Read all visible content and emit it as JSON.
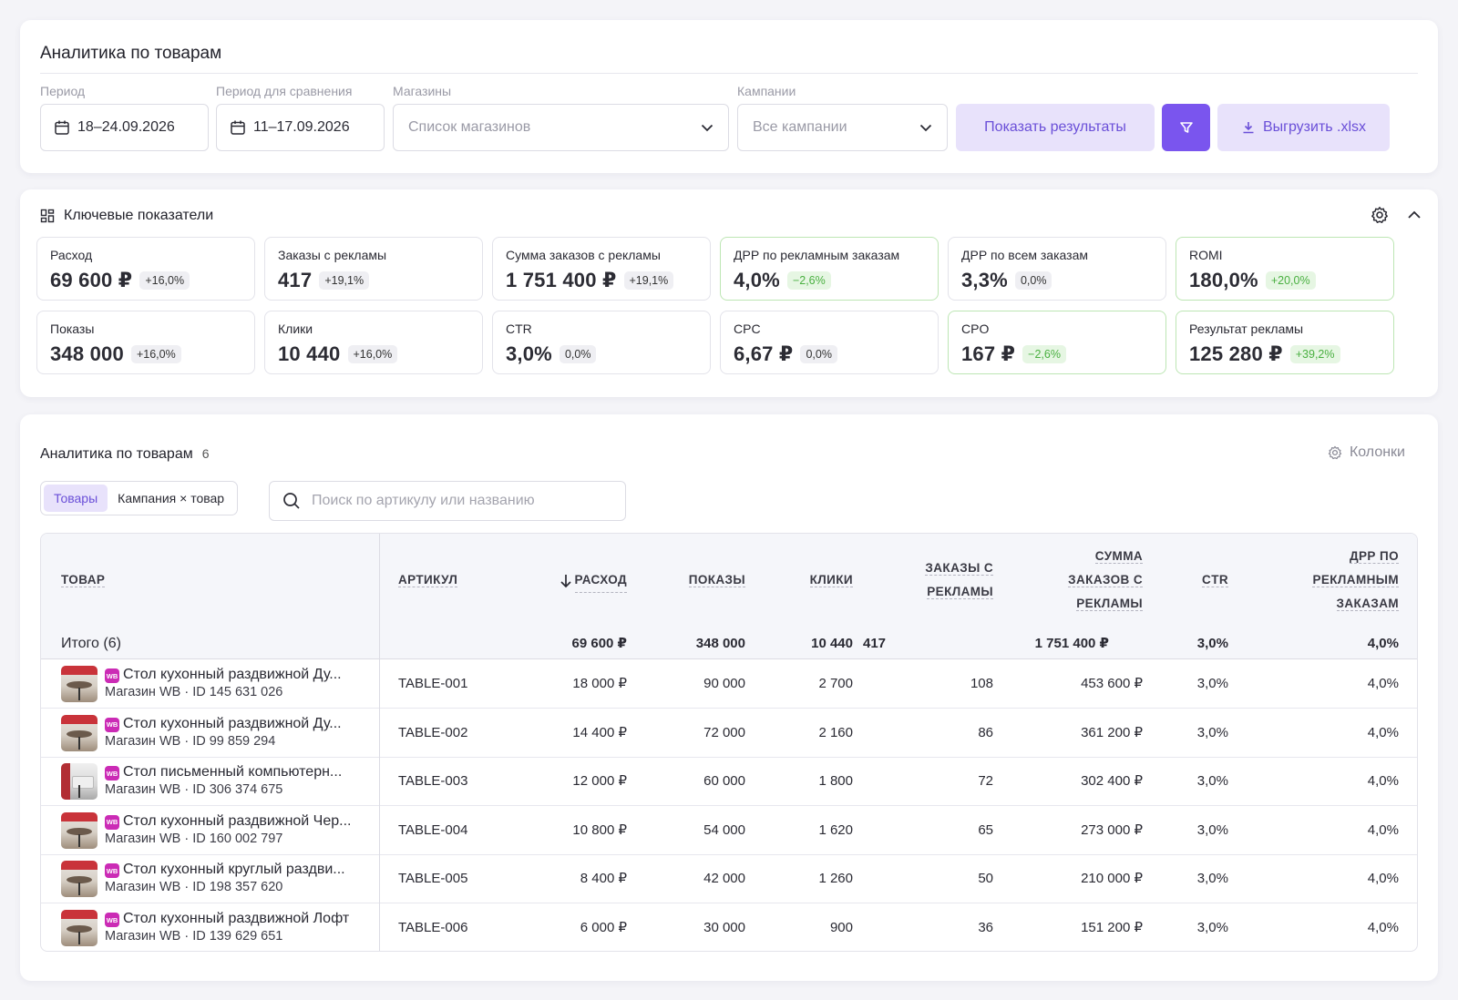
{
  "filters": {
    "title": "Аналитика по товарам",
    "period_label": "Период",
    "period_value": "18–24.09.2026",
    "compare_label": "Период для сравнения",
    "compare_value": "11–17.09.2026",
    "stores_label": "Магазины",
    "stores_placeholder": "Список магазинов",
    "campaigns_label": "Кампании",
    "campaigns_value": "Все кампании",
    "show_button": "Показать результаты",
    "export_button": "Выгрузить .xlsx"
  },
  "kpi": {
    "title": "Ключевые показатели",
    "tiles": [
      {
        "label": "Расход",
        "value": "69 600 ₽",
        "delta": "+16,0%",
        "positive": false
      },
      {
        "label": "Заказы с рекламы",
        "value": "417",
        "delta": "+19,1%",
        "positive": false
      },
      {
        "label": "Сумма заказов с рекламы",
        "value": "1 751 400 ₽",
        "delta": "+19,1%",
        "positive": false
      },
      {
        "label": "ДРР по рекламным заказам",
        "value": "4,0%",
        "delta": "−2,6%",
        "positive": true
      },
      {
        "label": "ДРР по всем заказам",
        "value": "3,3%",
        "delta": "0,0%",
        "positive": false
      },
      {
        "label": "ROMI",
        "value": "180,0%",
        "delta": "+20,0%",
        "positive": true
      },
      {
        "label": "Показы",
        "value": "348 000",
        "delta": "+16,0%",
        "positive": false
      },
      {
        "label": "Клики",
        "value": "10 440",
        "delta": "+16,0%",
        "positive": false
      },
      {
        "label": "CTR",
        "value": "3,0%",
        "delta": "0,0%",
        "positive": false
      },
      {
        "label": "CPC",
        "value": "6,67 ₽",
        "delta": "0,0%",
        "positive": false
      },
      {
        "label": "CPO",
        "value": "167 ₽",
        "delta": "−2,6%",
        "positive": true
      },
      {
        "label": "Результат рекламы",
        "value": "125 280 ₽",
        "delta": "+39,2%",
        "positive": true
      }
    ]
  },
  "table": {
    "title": "Аналитика по товарам",
    "count": "6",
    "columns_button": "Колонки",
    "tabs": [
      "Товары",
      "Кампания × товар"
    ],
    "search_placeholder": "Поиск по артикулу или названию",
    "headers": {
      "product": "ТОВАР",
      "sku": "АРТИКУЛ",
      "spend": "РАСХОД",
      "impressions": "ПОКАЗЫ",
      "clicks": "КЛИКИ",
      "orders_1": "ЗАКАЗЫ С",
      "orders_2": "РЕКЛАМЫ",
      "sum_1": "СУММА",
      "sum_2": "ЗАКАЗОВ С",
      "sum_3": "РЕКЛАМЫ",
      "ctr": "CTR",
      "drr_1": "ДРР ПО",
      "drr_2": "РЕКЛАМНЫМ",
      "drr_3": "ЗАКАЗАМ"
    },
    "total": {
      "label": "Итого (6)",
      "spend": "69 600 ₽",
      "impressions": "348 000",
      "clicks": "10 440",
      "orders": "417",
      "sum": "1 751 400 ₽",
      "ctr": "3,0%",
      "drr": "4,0%"
    },
    "rows": [
      {
        "name": "Стол кухонный раздвижной Ду...",
        "sub": "Магазин WB · ID 145 631 026",
        "sku": "TABLE-001",
        "spend": "18 000 ₽",
        "impressions": "90 000",
        "clicks": "2 700",
        "orders": "108",
        "sum": "453 600 ₽",
        "ctr": "3,0%",
        "drr": "4,0%"
      },
      {
        "name": "Стол кухонный раздвижной Ду...",
        "sub": "Магазин WB · ID 99 859 294",
        "sku": "TABLE-002",
        "spend": "14 400 ₽",
        "impressions": "72 000",
        "clicks": "2 160",
        "orders": "86",
        "sum": "361 200 ₽",
        "ctr": "3,0%",
        "drr": "4,0%"
      },
      {
        "name": "Стол письменный компьютерн...",
        "sub": "Магазин WB · ID 306 374 675",
        "sku": "TABLE-003",
        "spend": "12 000 ₽",
        "impressions": "60 000",
        "clicks": "1 800",
        "orders": "72",
        "sum": "302 400 ₽",
        "ctr": "3,0%",
        "drr": "4,0%"
      },
      {
        "name": "Стол кухонный раздвижной Чер...",
        "sub": "Магазин WB · ID 160 002 797",
        "sku": "TABLE-004",
        "spend": "10 800 ₽",
        "impressions": "54 000",
        "clicks": "1 620",
        "orders": "65",
        "sum": "273 000 ₽",
        "ctr": "3,0%",
        "drr": "4,0%"
      },
      {
        "name": "Стол кухонный круглый раздви...",
        "sub": "Магазин WB · ID 198 357 620",
        "sku": "TABLE-005",
        "spend": "8 400 ₽",
        "impressions": "42 000",
        "clicks": "1 260",
        "orders": "50",
        "sum": "210 000 ₽",
        "ctr": "3,0%",
        "drr": "4,0%"
      },
      {
        "name": "Стол кухонный раздвижной Лофт",
        "sub": "Магазин WB · ID 139 629 651",
        "sku": "TABLE-006",
        "spend": "6 000 ₽",
        "impressions": "30 000",
        "clicks": "900",
        "orders": "36",
        "sum": "151 200 ₽",
        "ctr": "3,0%",
        "drr": "4,0%"
      }
    ]
  },
  "colors": {
    "accent": "#7a55ee",
    "accent_soft": "#e8e2fb",
    "positive": "#4ab041",
    "marketplace_badge": "#cb2bb5"
  },
  "icons": {
    "calendar": "calendar-icon",
    "chevron": "chevron-down-icon",
    "filter": "filter-icon",
    "download": "download-icon",
    "dashboard": "dashboard-icon",
    "gear": "gear-icon",
    "collapse": "chevron-up-icon",
    "search": "search-icon",
    "sort": "arrow-down-icon",
    "wb": "WB"
  }
}
